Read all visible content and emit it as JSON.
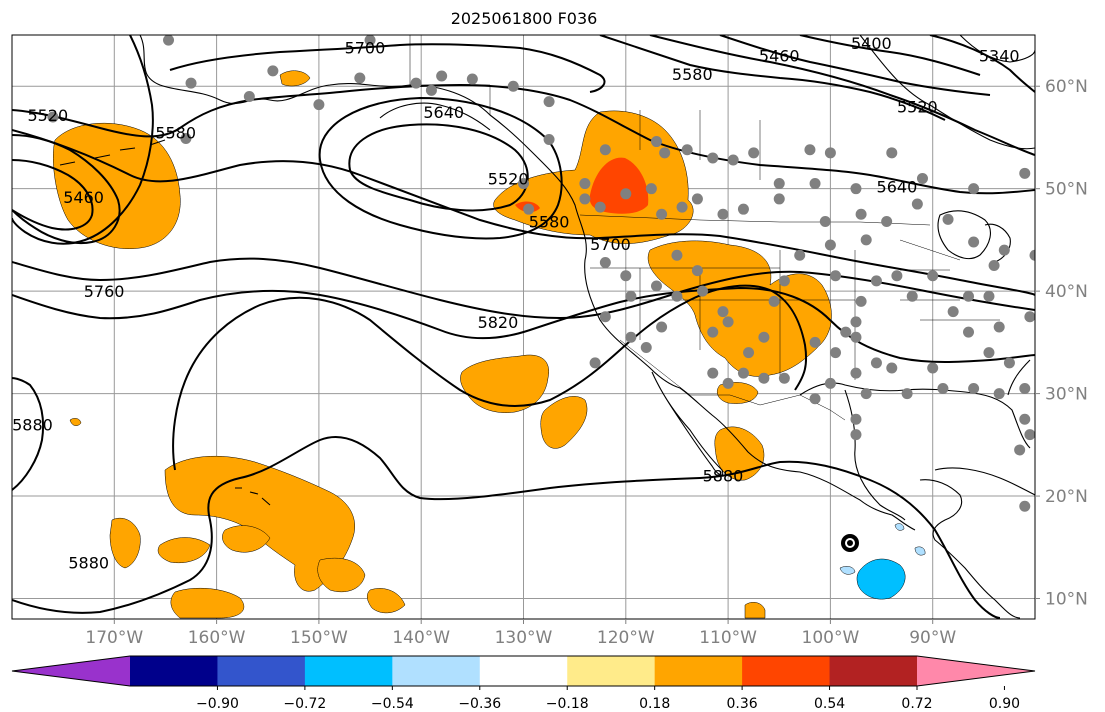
{
  "title": "2025061800 F036",
  "map": {
    "lon_range": [
      -180,
      -80
    ],
    "lat_range": [
      8,
      65
    ],
    "lon_ticks": [
      {
        "value": -170,
        "label": "170°W"
      },
      {
        "value": -160,
        "label": "160°W"
      },
      {
        "value": -150,
        "label": "150°W"
      },
      {
        "value": -140,
        "label": "140°W"
      },
      {
        "value": -130,
        "label": "130°W"
      },
      {
        "value": -120,
        "label": "120°W"
      },
      {
        "value": -110,
        "label": "110°W"
      },
      {
        "value": -100,
        "label": "100°W"
      },
      {
        "value": -90,
        "label": "90°W"
      }
    ],
    "lat_ticks": [
      {
        "value": 10,
        "label": "10°N"
      },
      {
        "value": 20,
        "label": "20°N"
      },
      {
        "value": 30,
        "label": "30°N"
      },
      {
        "value": 40,
        "label": "40°N"
      },
      {
        "value": 50,
        "label": "50°N"
      },
      {
        "value": 60,
        "label": "60°N"
      }
    ],
    "grid": true,
    "tick_label_color": "#808080"
  },
  "contours": {
    "color": "#000000",
    "labels": [
      {
        "text": "5700",
        "lon": -145.5,
        "lat": 63.8
      },
      {
        "text": "5640",
        "lon": -137.8,
        "lat": 57.5
      },
      {
        "text": "5520",
        "lon": -131.5,
        "lat": 51.0
      },
      {
        "text": "5580",
        "lon": -127.5,
        "lat": 46.8
      },
      {
        "text": "5700",
        "lon": -121.5,
        "lat": 44.6
      },
      {
        "text": "5580",
        "lon": -164.0,
        "lat": 55.5
      },
      {
        "text": "5520",
        "lon": -176.5,
        "lat": 57.2
      },
      {
        "text": "5460",
        "lon": -173.0,
        "lat": 49.2
      },
      {
        "text": "5760",
        "lon": -171.0,
        "lat": 40.0
      },
      {
        "text": "5820",
        "lon": -132.5,
        "lat": 37.0
      },
      {
        "text": "5880",
        "lon": -178.0,
        "lat": 27.0
      },
      {
        "text": "5880",
        "lon": -172.5,
        "lat": 13.5
      },
      {
        "text": "5880",
        "lon": -110.5,
        "lat": 22.0
      },
      {
        "text": "5580",
        "lon": -113.5,
        "lat": 61.2
      },
      {
        "text": "5460",
        "lon": -105.0,
        "lat": 63.0
      },
      {
        "text": "5400",
        "lon": -96.0,
        "lat": 64.2
      },
      {
        "text": "5340",
        "lon": -83.5,
        "lat": 63.0
      },
      {
        "text": "5520",
        "lon": -91.5,
        "lat": 58.0
      },
      {
        "text": "5640",
        "lon": -93.5,
        "lat": 50.2
      }
    ]
  },
  "stations": {
    "color": "#808080",
    "points": [
      [
        -164.7,
        64.5
      ],
      [
        -154.5,
        61.5
      ],
      [
        -162.5,
        60.3
      ],
      [
        -156.8,
        59.0
      ],
      [
        -150.0,
        58.2
      ],
      [
        -146.0,
        60.8
      ],
      [
        -139.0,
        59.6
      ],
      [
        -135.0,
        60.7
      ],
      [
        -131.0,
        60.0
      ],
      [
        -127.5,
        58.5
      ],
      [
        -127.5,
        54.8
      ],
      [
        -122.0,
        53.8
      ],
      [
        -117.0,
        54.6
      ],
      [
        -116.2,
        53.5
      ],
      [
        -114.0,
        53.8
      ],
      [
        -111.5,
        53.0
      ],
      [
        -109.5,
        52.8
      ],
      [
        -107.5,
        53.5
      ],
      [
        -105.0,
        50.5
      ],
      [
        -102.0,
        53.8
      ],
      [
        -100.0,
        53.5
      ],
      [
        -97.5,
        50.0
      ],
      [
        -94.0,
        53.5
      ],
      [
        -91.0,
        51.0
      ],
      [
        -86.0,
        50.0
      ],
      [
        -81.0,
        51.5
      ],
      [
        -163.0,
        54.9
      ],
      [
        -176.0,
        57.0
      ],
      [
        -140.5,
        60.3
      ],
      [
        -138.0,
        61.0
      ],
      [
        -145.0,
        64.5
      ],
      [
        -130.0,
        50.5
      ],
      [
        -129.5,
        48.0
      ],
      [
        -124.0,
        50.5
      ],
      [
        -124.0,
        49.0
      ],
      [
        -122.5,
        48.2
      ],
      [
        -120.0,
        49.5
      ],
      [
        -117.5,
        50.0
      ],
      [
        -116.5,
        47.5
      ],
      [
        -114.5,
        48.2
      ],
      [
        -113.0,
        49.0
      ],
      [
        -110.5,
        47.5
      ],
      [
        -108.5,
        48.0
      ],
      [
        -105.0,
        49.0
      ],
      [
        -101.5,
        50.5
      ],
      [
        -100.5,
        46.8
      ],
      [
        -97.0,
        47.5
      ],
      [
        -96.5,
        45.0
      ],
      [
        -94.5,
        46.8
      ],
      [
        -91.5,
        48.5
      ],
      [
        -88.5,
        47.0
      ],
      [
        -86.0,
        44.8
      ],
      [
        -84.0,
        42.5
      ],
      [
        -83.0,
        44.0
      ],
      [
        -80.0,
        43.5
      ],
      [
        -122.0,
        42.8
      ],
      [
        -120.0,
        41.5
      ],
      [
        -119.5,
        39.5
      ],
      [
        -122.0,
        37.5
      ],
      [
        -119.5,
        35.5
      ],
      [
        -118.0,
        34.5
      ],
      [
        -116.5,
        36.5
      ],
      [
        -115.0,
        39.5
      ],
      [
        -115.0,
        43.5
      ],
      [
        -113.0,
        42.0
      ],
      [
        -112.5,
        40.0
      ],
      [
        -111.5,
        36.0
      ],
      [
        -110.5,
        38.0
      ],
      [
        -111.5,
        32.0
      ],
      [
        -110.0,
        31.0
      ],
      [
        -108.5,
        32.0
      ],
      [
        -108.0,
        34.0
      ],
      [
        -106.5,
        35.5
      ],
      [
        -105.5,
        39.0
      ],
      [
        -104.5,
        41.0
      ],
      [
        -103.0,
        43.5
      ],
      [
        -100.0,
        44.5
      ],
      [
        -99.5,
        41.5
      ],
      [
        -97.0,
        39.0
      ],
      [
        -97.5,
        37.0
      ],
      [
        -95.5,
        41.0
      ],
      [
        -93.5,
        41.5
      ],
      [
        -92.0,
        39.5
      ],
      [
        -90.0,
        41.5
      ],
      [
        -88.0,
        38.0
      ],
      [
        -86.5,
        39.5
      ],
      [
        -84.5,
        39.5
      ],
      [
        -86.5,
        36.0
      ],
      [
        -83.5,
        36.5
      ],
      [
        -80.5,
        37.5
      ],
      [
        -84.5,
        34.0
      ],
      [
        -82.5,
        33.0
      ],
      [
        -81.0,
        30.5
      ],
      [
        -83.5,
        30.0
      ],
      [
        -86.0,
        30.5
      ],
      [
        -89.0,
        30.5
      ],
      [
        -90.0,
        32.5
      ],
      [
        -92.5,
        30.0
      ],
      [
        -94.0,
        32.5
      ],
      [
        -97.5,
        35.5
      ],
      [
        -99.5,
        34.0
      ],
      [
        -101.5,
        35.0
      ],
      [
        -97.5,
        32.0
      ],
      [
        -96.5,
        30.0
      ],
      [
        -101.5,
        29.5
      ],
      [
        -104.5,
        31.5
      ],
      [
        -106.5,
        31.5
      ],
      [
        -97.5,
        27.5
      ],
      [
        -97.5,
        26.0
      ],
      [
        -100.0,
        31.0
      ],
      [
        -81.0,
        27.5
      ],
      [
        -80.5,
        26.0
      ],
      [
        -81.5,
        24.5
      ],
      [
        -81.0,
        19.0
      ],
      [
        -123.0,
        33.0
      ],
      [
        -117.0,
        40.5
      ],
      [
        -110.0,
        37.0
      ],
      [
        -95.5,
        33.0
      ],
      [
        -98.5,
        36.0
      ]
    ]
  },
  "precip_colors": {
    "orange": "#FFA500",
    "orange_red": "#FF4500",
    "light_blue": "#B0E0FF",
    "deep_sky_blue": "#00BFFF"
  },
  "colorbar": {
    "colors": [
      "#9932CC",
      "#00008B",
      "#3355CC",
      "#00BFFF",
      "#B0E0FF",
      "#FFFFFF",
      "#FFEB8A",
      "#FFA500",
      "#FF4500",
      "#B22222",
      "#FF88AA"
    ],
    "tick_labels": [
      "−0.90",
      "−0.72",
      "−0.54",
      "−0.36",
      "−0.18",
      "0.18",
      "0.36",
      "0.54",
      "0.72",
      "0.90"
    ]
  }
}
